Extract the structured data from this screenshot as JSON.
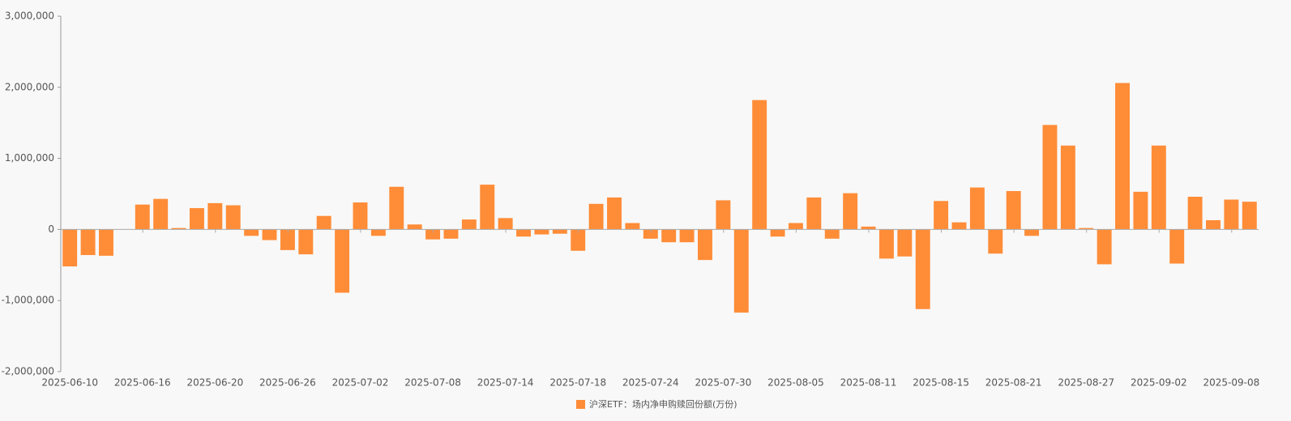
{
  "chart_data": {
    "type": "bar",
    "series": [
      {
        "name": "沪深ETF：场内净申购赎回份额(万份)",
        "color": "#ff8c37",
        "values": [
          -520000,
          -360000,
          -370000,
          5000,
          350000,
          430000,
          20000,
          300000,
          370000,
          340000,
          -90000,
          -150000,
          -290000,
          -350000,
          190000,
          -890000,
          380000,
          -90000,
          600000,
          70000,
          -140000,
          -130000,
          140000,
          630000,
          160000,
          -100000,
          -70000,
          -60000,
          -300000,
          360000,
          450000,
          90000,
          -130000,
          -180000,
          -180000,
          -430000,
          410000,
          -1170000,
          1820000,
          -100000,
          90000,
          450000,
          -130000,
          510000,
          40000,
          -410000,
          -380000,
          -1120000,
          400000,
          100000,
          590000,
          -340000,
          540000,
          -90000,
          1470000,
          1180000,
          20000,
          -490000,
          2060000,
          530000,
          1180000,
          -480000,
          460000,
          130000,
          420000,
          390000
        ]
      }
    ],
    "categories": [
      "2025-06-10",
      null,
      null,
      null,
      "2025-06-16",
      null,
      null,
      null,
      "2025-06-20",
      null,
      null,
      null,
      "2025-06-26",
      null,
      null,
      null,
      "2025-07-02",
      null,
      null,
      null,
      "2025-07-08",
      null,
      null,
      null,
      "2025-07-14",
      null,
      null,
      null,
      "2025-07-18",
      null,
      null,
      null,
      "2025-07-24",
      null,
      null,
      null,
      "2025-07-30",
      null,
      null,
      null,
      "2025-08-05",
      null,
      null,
      null,
      "2025-08-11",
      null,
      null,
      null,
      "2025-08-15",
      null,
      null,
      null,
      "2025-08-21",
      null,
      null,
      null,
      "2025-08-27",
      null,
      null,
      null,
      "2025-09-02",
      null,
      null,
      null,
      "2025-09-08",
      null
    ],
    "ylim": [
      -2000000,
      3000000
    ],
    "yticks": [
      {
        "value": -2000000,
        "label": "-2,000,000"
      },
      {
        "value": -1000000,
        "label": "-1,000,000"
      },
      0,
      {
        "value": 1000000,
        "label": "1,000,000"
      },
      {
        "value": 2000000,
        "label": "2,000,000"
      },
      {
        "value": 3000000,
        "label": "3,000,000"
      }
    ],
    "grid": false,
    "legend": "bottom"
  }
}
